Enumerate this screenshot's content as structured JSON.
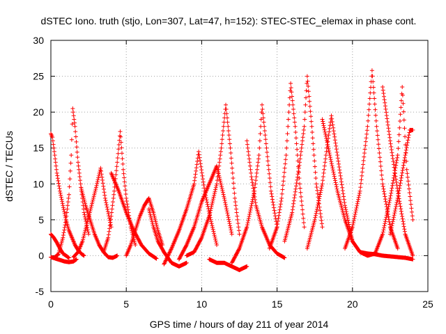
{
  "chart_data": {
    "type": "scatter",
    "title": "dSTEC Iono. truth (stjo, Lon=307, Lat=47, h=152): STEC-STEC_elemax in phase cont.",
    "xlabel": "GPS time / hours of day 211 of year 2014",
    "ylabel": "dSTEC  / TECUs",
    "xlim": [
      0,
      25
    ],
    "ylim": [
      -5,
      30
    ],
    "xticks": [
      0,
      5,
      10,
      15,
      20,
      25
    ],
    "yticks": [
      -5,
      0,
      5,
      10,
      15,
      20,
      25,
      30
    ],
    "grid": true,
    "legend": "none",
    "marker": "plus",
    "marker_color": "#ff0000",
    "series": [
      {
        "x": [
          0.0,
          0.1,
          0.2,
          0.4,
          0.6,
          0.8,
          1.0,
          1.2,
          1.4,
          1.6,
          1.8,
          2.0,
          2.2
        ],
        "y": [
          17.0,
          16.5,
          15.0,
          11.5,
          9.0,
          7.0,
          5.0,
          3.5,
          2.5,
          1.5,
          0.8,
          0.3,
          0.0
        ]
      },
      {
        "x": [
          0.0,
          0.2,
          0.4,
          0.6,
          0.8,
          1.0,
          1.2
        ],
        "y": [
          3.0,
          2.5,
          1.8,
          1.0,
          0.3,
          0.0,
          -0.3
        ]
      },
      {
        "x": [
          0.0,
          0.3,
          0.6,
          0.9,
          1.2,
          1.5,
          1.7
        ],
        "y": [
          -0.2,
          -0.4,
          -0.6,
          -0.8,
          -0.9,
          -0.8,
          -0.5
        ]
      },
      {
        "x": [
          0.2,
          0.5,
          0.8,
          1.0,
          1.2,
          1.35,
          1.45,
          1.6,
          1.8,
          2.0,
          2.2,
          2.5
        ],
        "y": [
          -0.3,
          0.2,
          2.5,
          5.0,
          8.5,
          14.0,
          20.5,
          18.0,
          13.0,
          9.5,
          6.0,
          3.0
        ]
      },
      {
        "x": [
          1.5,
          1.8,
          2.1,
          2.4,
          2.7,
          3.0,
          3.3,
          3.6,
          4.0
        ],
        "y": [
          -0.2,
          0.5,
          2.0,
          4.5,
          7.0,
          9.5,
          12.2,
          8.0,
          4.0
        ]
      },
      {
        "x": [
          2.0,
          2.3,
          2.6,
          2.9,
          3.2,
          3.5,
          3.8,
          4.1,
          4.4
        ],
        "y": [
          9.5,
          7.0,
          5.0,
          3.0,
          1.5,
          0.5,
          -0.2,
          -0.3,
          0.0
        ]
      },
      {
        "x": [
          3.5,
          3.8,
          4.0,
          4.2,
          4.4,
          4.6,
          4.8,
          5.0,
          5.3,
          5.6
        ],
        "y": [
          0.5,
          2.5,
          5.5,
          9.0,
          13.0,
          17.3,
          12.0,
          8.0,
          4.0,
          1.5
        ]
      },
      {
        "x": [
          4.0,
          4.5,
          5.0,
          5.5,
          6.0,
          6.5,
          7.0
        ],
        "y": [
          11.5,
          9.0,
          6.0,
          3.5,
          1.5,
          0.3,
          -0.4
        ]
      },
      {
        "x": [
          5.0,
          5.3,
          5.6,
          5.9,
          6.2,
          6.5,
          6.8,
          7.1,
          7.4
        ],
        "y": [
          0.0,
          1.5,
          3.5,
          5.5,
          7.0,
          8.0,
          6.0,
          3.5,
          1.5
        ]
      },
      {
        "x": [
          6.5,
          6.8,
          7.1,
          7.5,
          8.0,
          8.5,
          9.0
        ],
        "y": [
          6.5,
          4.0,
          2.0,
          0.5,
          -1.0,
          -1.5,
          -1.0
        ]
      },
      {
        "x": [
          7.5,
          8.0,
          8.5,
          9.0,
          9.5,
          9.8,
          10.2,
          10.6,
          11.0
        ],
        "y": [
          -1.2,
          1.0,
          3.5,
          6.5,
          10.0,
          14.5,
          9.0,
          5.0,
          1.5
        ]
      },
      {
        "x": [
          8.5,
          9.0,
          9.5,
          10.0,
          10.5,
          11.0,
          11.5,
          12.0
        ],
        "y": [
          -0.5,
          1.5,
          4.0,
          7.5,
          10.0,
          12.5,
          8.0,
          3.0
        ]
      },
      {
        "x": [
          9.0,
          9.5,
          10.0,
          10.5,
          11.0,
          11.3,
          11.6,
          11.9,
          12.2,
          12.5
        ],
        "y": [
          0.0,
          0.5,
          2.5,
          5.5,
          10.0,
          15.0,
          21.0,
          15.0,
          8.0,
          3.0
        ]
      },
      {
        "x": [
          10.5,
          11.0,
          11.5,
          12.0,
          12.5,
          13.0
        ],
        "y": [
          -0.5,
          -1.0,
          -1.0,
          -1.5,
          -2.0,
          -1.5
        ]
      },
      {
        "x": [
          12.0,
          12.5,
          13.0,
          13.5,
          13.8,
          14.0,
          14.3,
          14.6,
          15.0
        ],
        "y": [
          -1.0,
          1.0,
          4.0,
          9.0,
          14.0,
          21.0,
          15.0,
          9.0,
          4.0
        ]
      },
      {
        "x": [
          13.0,
          13.3,
          13.6,
          14.0,
          14.5,
          15.0,
          15.5
        ],
        "y": [
          16.0,
          11.0,
          7.0,
          4.0,
          1.5,
          0.3,
          -0.3
        ]
      },
      {
        "x": [
          14.5,
          15.0,
          15.3,
          15.6,
          15.9,
          16.2,
          16.5,
          16.8
        ],
        "y": [
          1.0,
          4.0,
          8.0,
          14.0,
          24.0,
          18.0,
          10.0,
          4.0
        ]
      },
      {
        "x": [
          15.5,
          16.0,
          16.5,
          16.8,
          17.0,
          17.3,
          17.6,
          18.0
        ],
        "y": [
          2.0,
          6.0,
          13.0,
          18.0,
          25.0,
          18.0,
          10.0,
          4.0
        ]
      },
      {
        "x": [
          17.0,
          17.5,
          18.0,
          18.3,
          18.6,
          19.0,
          19.5,
          20.0
        ],
        "y": [
          1.0,
          5.0,
          10.0,
          15.0,
          19.5,
          14.0,
          7.0,
          2.0
        ]
      },
      {
        "x": [
          18.0,
          18.5,
          19.0,
          19.5,
          20.0,
          20.5,
          21.0,
          21.5
        ],
        "y": [
          19.0,
          14.0,
          9.0,
          5.0,
          2.0,
          0.5,
          0.0,
          0.3
        ]
      },
      {
        "x": [
          19.5,
          20.0,
          20.5,
          21.0,
          21.3,
          21.6,
          22.0,
          22.5,
          23.0
        ],
        "y": [
          1.0,
          4.0,
          9.0,
          18.0,
          25.8,
          18.0,
          10.0,
          4.0,
          1.0
        ]
      },
      {
        "x": [
          21.5,
          22.0,
          22.5,
          23.0,
          23.3,
          23.6,
          24.0
        ],
        "y": [
          0.3,
          3.0,
          8.0,
          14.0,
          23.5,
          12.0,
          5.0
        ]
      },
      {
        "x": [
          22.0,
          22.5,
          23.0,
          23.5,
          24.0
        ],
        "y": [
          23.5,
          16.0,
          9.0,
          3.0,
          0.0
        ]
      },
      {
        "x": [
          20.5,
          21.0,
          21.5,
          22.0,
          22.5,
          23.0,
          23.5,
          24.0
        ],
        "y": [
          0.5,
          0.3,
          0.2,
          0.0,
          -0.1,
          -0.2,
          -0.3,
          -0.5
        ]
      },
      {
        "x": [
          22.5,
          23.0,
          23.5,
          23.8,
          24.0
        ],
        "y": [
          3.0,
          8.0,
          14.0,
          17.5,
          17.5
        ]
      }
    ]
  }
}
